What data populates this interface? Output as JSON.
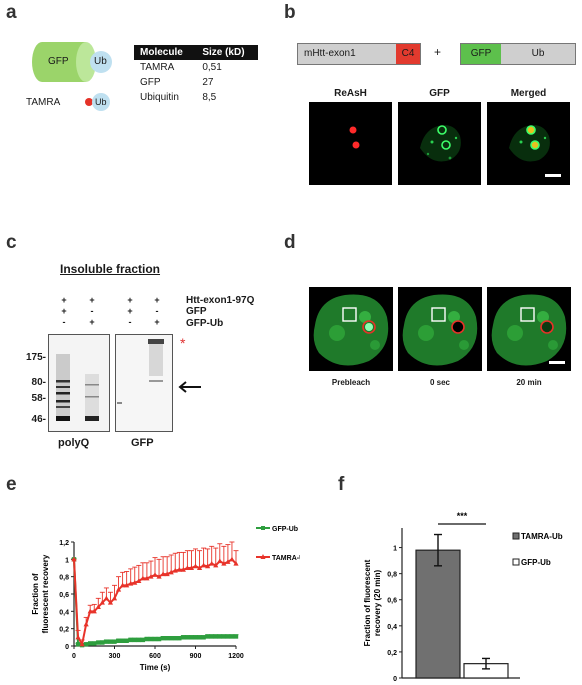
{
  "panel_labels": [
    "a",
    "b",
    "c",
    "d",
    "e",
    "f"
  ],
  "panel_a": {
    "shape_labels": {
      "gfp": "GFP",
      "ub": "Ub",
      "tamra": "TAMRA",
      "ub2": "Ub"
    },
    "table": {
      "headers": [
        "Molecule",
        "Size (kD)"
      ],
      "rows": [
        [
          "TAMRA",
          "0,51"
        ],
        [
          "GFP",
          "27"
        ],
        [
          "Ubiquitin",
          "8,5"
        ]
      ]
    }
  },
  "panel_b": {
    "construct1": {
      "main": "mHtt-exon1",
      "tag": "C4"
    },
    "plus": "+",
    "construct2": {
      "tag": "GFP",
      "main": "Ub"
    },
    "image_titles": [
      "ReAsH",
      "GFP",
      "Merged"
    ]
  },
  "panel_c": {
    "title": "Insoluble fraction",
    "rows": [
      {
        "label": "Htt-exon1-97Q",
        "marks": [
          "+",
          "+",
          "+",
          "+"
        ]
      },
      {
        "label": "GFP",
        "marks": [
          "+",
          "-",
          "+",
          "-"
        ]
      },
      {
        "label": "GFP-Ub",
        "marks": [
          "-",
          "+",
          "-",
          "+"
        ]
      }
    ],
    "mw_markers": [
      "175-",
      "80-",
      "58-",
      "46-"
    ],
    "blot_labels": [
      "polyQ",
      "GFP"
    ],
    "asterisk": "*"
  },
  "panel_d": {
    "captions": [
      "Prebleach",
      "0 sec",
      "20 min"
    ]
  },
  "chart_data": [
    {
      "type": "line",
      "panel": "e",
      "title": "",
      "xlabel": "Time (s)",
      "ylabel": "Fraction of fluorescent recovery",
      "xlim": [
        0,
        1200
      ],
      "ylim": [
        0,
        1.2
      ],
      "x_ticks": [
        "0",
        "300",
        "600",
        "900",
        "1200"
      ],
      "y_ticks": [
        "0",
        "0,2",
        "0,4",
        "0,6",
        "0,8",
        "1",
        "1,2"
      ],
      "legend_position": "top-right",
      "series": [
        {
          "name": "GFP-Ub",
          "color": "#2e9e3e",
          "x": [
            0,
            30,
            60,
            90,
            120,
            150,
            180,
            210,
            240,
            270,
            300,
            330,
            360,
            390,
            420,
            450,
            480,
            510,
            540,
            570,
            600,
            630,
            660,
            690,
            720,
            750,
            780,
            810,
            840,
            870,
            900,
            930,
            960,
            990,
            1020,
            1050,
            1080,
            1110,
            1140,
            1170,
            1200
          ],
          "y": [
            1.0,
            0.02,
            0.01,
            0.02,
            0.03,
            0.03,
            0.04,
            0.04,
            0.05,
            0.05,
            0.05,
            0.06,
            0.06,
            0.06,
            0.07,
            0.07,
            0.07,
            0.07,
            0.08,
            0.08,
            0.08,
            0.08,
            0.09,
            0.09,
            0.09,
            0.09,
            0.09,
            0.1,
            0.1,
            0.1,
            0.1,
            0.1,
            0.1,
            0.11,
            0.11,
            0.11,
            0.11,
            0.11,
            0.11,
            0.11,
            0.11
          ],
          "err": [
            0.01,
            0.01,
            0.01,
            0.01,
            0.01,
            0.01,
            0.01,
            0.02,
            0.02,
            0.02,
            0.02,
            0.02,
            0.02,
            0.02,
            0.02,
            0.02,
            0.02,
            0.02,
            0.02,
            0.02,
            0.02,
            0.02,
            0.02,
            0.02,
            0.02,
            0.02,
            0.02,
            0.02,
            0.02,
            0.02,
            0.02,
            0.02,
            0.02,
            0.02,
            0.02,
            0.02,
            0.02,
            0.02,
            0.02,
            0.02,
            0.02
          ]
        },
        {
          "name": "TAMRA-Ub",
          "color": "#e8332a",
          "x": [
            0,
            30,
            60,
            90,
            120,
            150,
            180,
            210,
            240,
            270,
            300,
            330,
            360,
            390,
            420,
            450,
            480,
            510,
            540,
            570,
            600,
            630,
            660,
            690,
            720,
            750,
            780,
            810,
            840,
            870,
            900,
            930,
            960,
            990,
            1020,
            1050,
            1080,
            1110,
            1140,
            1170,
            1200
          ],
          "y": [
            1.0,
            0.1,
            0.02,
            0.25,
            0.4,
            0.4,
            0.45,
            0.5,
            0.55,
            0.5,
            0.55,
            0.65,
            0.7,
            0.7,
            0.72,
            0.73,
            0.75,
            0.78,
            0.78,
            0.8,
            0.82,
            0.8,
            0.83,
            0.83,
            0.85,
            0.87,
            0.88,
            0.88,
            0.9,
            0.9,
            0.92,
            0.9,
            0.93,
            0.92,
            0.95,
            0.93,
            0.98,
            0.95,
            0.97,
            1.0,
            0.95
          ],
          "err": [
            0.0,
            0.08,
            0.05,
            0.08,
            0.07,
            0.08,
            0.1,
            0.12,
            0.12,
            0.12,
            0.15,
            0.15,
            0.15,
            0.16,
            0.17,
            0.18,
            0.18,
            0.18,
            0.18,
            0.18,
            0.2,
            0.2,
            0.2,
            0.2,
            0.2,
            0.2,
            0.2,
            0.2,
            0.2,
            0.2,
            0.2,
            0.2,
            0.2,
            0.2,
            0.2,
            0.2,
            0.2,
            0.2,
            0.2,
            0.2,
            0.15
          ]
        }
      ]
    },
    {
      "type": "bar",
      "panel": "f",
      "title": "",
      "ylabel": "Fraction of fluorescent recovery (20 min)",
      "ylim": [
        0,
        1.15
      ],
      "y_ticks": [
        "0",
        "0,2",
        "0,4",
        "0,6",
        "0,8",
        "1"
      ],
      "categories": [
        "TAMRA-Ub",
        "GFP-Ub"
      ],
      "values": [
        0.98,
        0.11
      ],
      "errors": [
        0.12,
        0.04
      ],
      "colors": [
        "#707070",
        "#ffffff"
      ],
      "significance": "***",
      "legend_position": "right"
    }
  ]
}
